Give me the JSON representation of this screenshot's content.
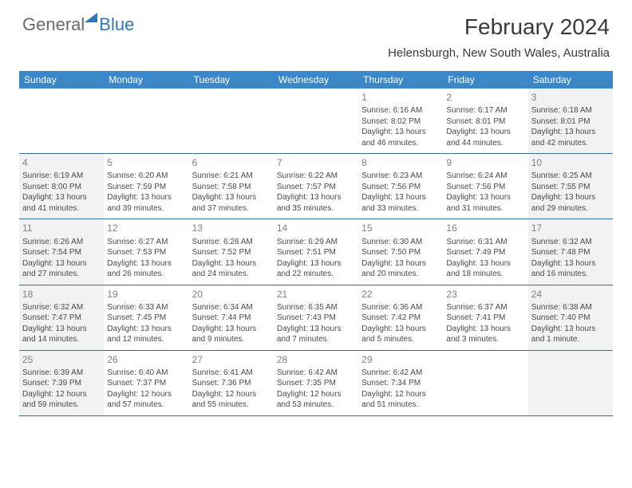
{
  "brand": {
    "part1": "General",
    "part2": "Blue"
  },
  "title": "February 2024",
  "location": "Helensburgh, New South Wales, Australia",
  "colors": {
    "header_blue": "#3b87c8",
    "rule_blue": "#3b6d9c",
    "shade": "#f2f2f2",
    "logo_blue": "#2e77bb",
    "logo_gray": "#6a6a6a",
    "text": "#3a3a3a"
  },
  "dow": [
    "Sunday",
    "Monday",
    "Tuesday",
    "Wednesday",
    "Thursday",
    "Friday",
    "Saturday"
  ],
  "weeks": [
    [
      {
        "empty": true
      },
      {
        "empty": true
      },
      {
        "empty": true
      },
      {
        "empty": true
      },
      {
        "num": "1",
        "sunrise": "Sunrise: 6:16 AM",
        "sunset": "Sunset: 8:02 PM",
        "day1": "Daylight: 13 hours",
        "day2": "and 46 minutes."
      },
      {
        "num": "2",
        "sunrise": "Sunrise: 6:17 AM",
        "sunset": "Sunset: 8:01 PM",
        "day1": "Daylight: 13 hours",
        "day2": "and 44 minutes."
      },
      {
        "num": "3",
        "sunrise": "Sunrise: 6:18 AM",
        "sunset": "Sunset: 8:01 PM",
        "day1": "Daylight: 13 hours",
        "day2": "and 42 minutes.",
        "shade": true
      }
    ],
    [
      {
        "num": "4",
        "sunrise": "Sunrise: 6:19 AM",
        "sunset": "Sunset: 8:00 PM",
        "day1": "Daylight: 13 hours",
        "day2": "and 41 minutes.",
        "shade": true
      },
      {
        "num": "5",
        "sunrise": "Sunrise: 6:20 AM",
        "sunset": "Sunset: 7:59 PM",
        "day1": "Daylight: 13 hours",
        "day2": "and 39 minutes."
      },
      {
        "num": "6",
        "sunrise": "Sunrise: 6:21 AM",
        "sunset": "Sunset: 7:58 PM",
        "day1": "Daylight: 13 hours",
        "day2": "and 37 minutes."
      },
      {
        "num": "7",
        "sunrise": "Sunrise: 6:22 AM",
        "sunset": "Sunset: 7:57 PM",
        "day1": "Daylight: 13 hours",
        "day2": "and 35 minutes."
      },
      {
        "num": "8",
        "sunrise": "Sunrise: 6:23 AM",
        "sunset": "Sunset: 7:56 PM",
        "day1": "Daylight: 13 hours",
        "day2": "and 33 minutes."
      },
      {
        "num": "9",
        "sunrise": "Sunrise: 6:24 AM",
        "sunset": "Sunset: 7:56 PM",
        "day1": "Daylight: 13 hours",
        "day2": "and 31 minutes."
      },
      {
        "num": "10",
        "sunrise": "Sunrise: 6:25 AM",
        "sunset": "Sunset: 7:55 PM",
        "day1": "Daylight: 13 hours",
        "day2": "and 29 minutes.",
        "shade": true
      }
    ],
    [
      {
        "num": "11",
        "sunrise": "Sunrise: 6:26 AM",
        "sunset": "Sunset: 7:54 PM",
        "day1": "Daylight: 13 hours",
        "day2": "and 27 minutes.",
        "shade": true
      },
      {
        "num": "12",
        "sunrise": "Sunrise: 6:27 AM",
        "sunset": "Sunset: 7:53 PM",
        "day1": "Daylight: 13 hours",
        "day2": "and 26 minutes."
      },
      {
        "num": "13",
        "sunrise": "Sunrise: 6:28 AM",
        "sunset": "Sunset: 7:52 PM",
        "day1": "Daylight: 13 hours",
        "day2": "and 24 minutes."
      },
      {
        "num": "14",
        "sunrise": "Sunrise: 6:29 AM",
        "sunset": "Sunset: 7:51 PM",
        "day1": "Daylight: 13 hours",
        "day2": "and 22 minutes."
      },
      {
        "num": "15",
        "sunrise": "Sunrise: 6:30 AM",
        "sunset": "Sunset: 7:50 PM",
        "day1": "Daylight: 13 hours",
        "day2": "and 20 minutes."
      },
      {
        "num": "16",
        "sunrise": "Sunrise: 6:31 AM",
        "sunset": "Sunset: 7:49 PM",
        "day1": "Daylight: 13 hours",
        "day2": "and 18 minutes."
      },
      {
        "num": "17",
        "sunrise": "Sunrise: 6:32 AM",
        "sunset": "Sunset: 7:48 PM",
        "day1": "Daylight: 13 hours",
        "day2": "and 16 minutes.",
        "shade": true
      }
    ],
    [
      {
        "num": "18",
        "sunrise": "Sunrise: 6:32 AM",
        "sunset": "Sunset: 7:47 PM",
        "day1": "Daylight: 13 hours",
        "day2": "and 14 minutes.",
        "shade": true
      },
      {
        "num": "19",
        "sunrise": "Sunrise: 6:33 AM",
        "sunset": "Sunset: 7:45 PM",
        "day1": "Daylight: 13 hours",
        "day2": "and 12 minutes."
      },
      {
        "num": "20",
        "sunrise": "Sunrise: 6:34 AM",
        "sunset": "Sunset: 7:44 PM",
        "day1": "Daylight: 13 hours",
        "day2": "and 9 minutes."
      },
      {
        "num": "21",
        "sunrise": "Sunrise: 6:35 AM",
        "sunset": "Sunset: 7:43 PM",
        "day1": "Daylight: 13 hours",
        "day2": "and 7 minutes."
      },
      {
        "num": "22",
        "sunrise": "Sunrise: 6:36 AM",
        "sunset": "Sunset: 7:42 PM",
        "day1": "Daylight: 13 hours",
        "day2": "and 5 minutes."
      },
      {
        "num": "23",
        "sunrise": "Sunrise: 6:37 AM",
        "sunset": "Sunset: 7:41 PM",
        "day1": "Daylight: 13 hours",
        "day2": "and 3 minutes."
      },
      {
        "num": "24",
        "sunrise": "Sunrise: 6:38 AM",
        "sunset": "Sunset: 7:40 PM",
        "day1": "Daylight: 13 hours",
        "day2": "and 1 minute.",
        "shade": true
      }
    ],
    [
      {
        "num": "25",
        "sunrise": "Sunrise: 6:39 AM",
        "sunset": "Sunset: 7:39 PM",
        "day1": "Daylight: 12 hours",
        "day2": "and 59 minutes.",
        "shade": true
      },
      {
        "num": "26",
        "sunrise": "Sunrise: 6:40 AM",
        "sunset": "Sunset: 7:37 PM",
        "day1": "Daylight: 12 hours",
        "day2": "and 57 minutes."
      },
      {
        "num": "27",
        "sunrise": "Sunrise: 6:41 AM",
        "sunset": "Sunset: 7:36 PM",
        "day1": "Daylight: 12 hours",
        "day2": "and 55 minutes."
      },
      {
        "num": "28",
        "sunrise": "Sunrise: 6:42 AM",
        "sunset": "Sunset: 7:35 PM",
        "day1": "Daylight: 12 hours",
        "day2": "and 53 minutes."
      },
      {
        "num": "29",
        "sunrise": "Sunrise: 6:42 AM",
        "sunset": "Sunset: 7:34 PM",
        "day1": "Daylight: 12 hours",
        "day2": "and 51 minutes."
      },
      {
        "empty": true
      },
      {
        "empty": true,
        "shade": true
      }
    ]
  ]
}
